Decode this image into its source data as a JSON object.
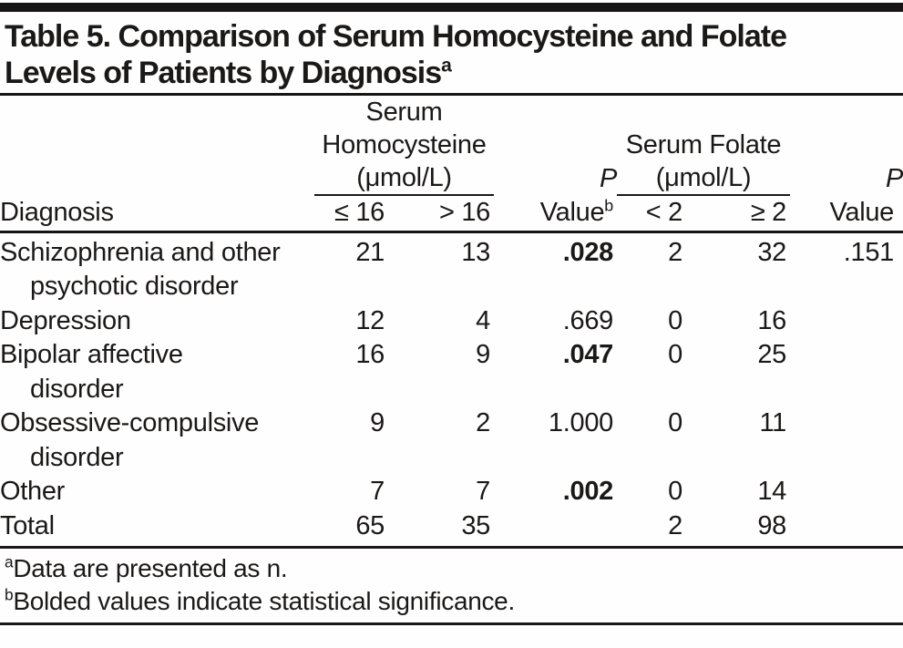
{
  "page": {
    "background": "#fefefe",
    "text_color": "#1b1918",
    "rule_color": "#161414"
  },
  "table": {
    "title_line1": "Table 5. Comparison of Serum Homocysteine and Folate",
    "title_line2": "Levels of Patients by Diagnosis",
    "title_superscript": "a",
    "columns": {
      "diagnosis": "Diagnosis",
      "group1": {
        "label": "Serum\nHomocysteine\n(μmol/L)",
        "sub1": "≤ 16",
        "sub2": "> 16"
      },
      "p1": {
        "line1": "P",
        "line2": "Value",
        "sup": "b"
      },
      "group2": {
        "label": "Serum Folate\n(μmol/L)",
        "sub1": "< 2",
        "sub2": "≥ 2"
      },
      "p2": {
        "line1": "P",
        "line2": "Value",
        "sup": ""
      }
    },
    "rows": [
      {
        "diagnosis_lines": [
          "Schizophrenia and other",
          "psychotic disorder"
        ],
        "values": [
          "21",
          "13",
          ".028",
          "2",
          "32",
          ".151"
        ],
        "p1_bold": true
      },
      {
        "diagnosis_lines": [
          "Depression"
        ],
        "values": [
          "12",
          "4",
          ".669",
          "0",
          "16",
          ""
        ],
        "p1_bold": false
      },
      {
        "diagnosis_lines": [
          "Bipolar affective",
          "disorder"
        ],
        "values": [
          "16",
          "9",
          ".047",
          "0",
          "25",
          ""
        ],
        "p1_bold": true
      },
      {
        "diagnosis_lines": [
          "Obsessive-compulsive",
          "disorder"
        ],
        "values": [
          "9",
          "2",
          "1.000",
          "0",
          "11",
          ""
        ],
        "p1_bold": false
      },
      {
        "diagnosis_lines": [
          "Other"
        ],
        "values": [
          "7",
          "7",
          ".002",
          "0",
          "14",
          ""
        ],
        "p1_bold": true
      },
      {
        "diagnosis_lines": [
          "Total"
        ],
        "values": [
          "65",
          "35",
          "",
          "2",
          "98",
          ""
        ],
        "p1_bold": false
      }
    ]
  },
  "footnotes": [
    {
      "sup": "a",
      "text": "Data are presented as n."
    },
    {
      "sup": "b",
      "text": "Bolded values indicate statistical significance."
    }
  ]
}
